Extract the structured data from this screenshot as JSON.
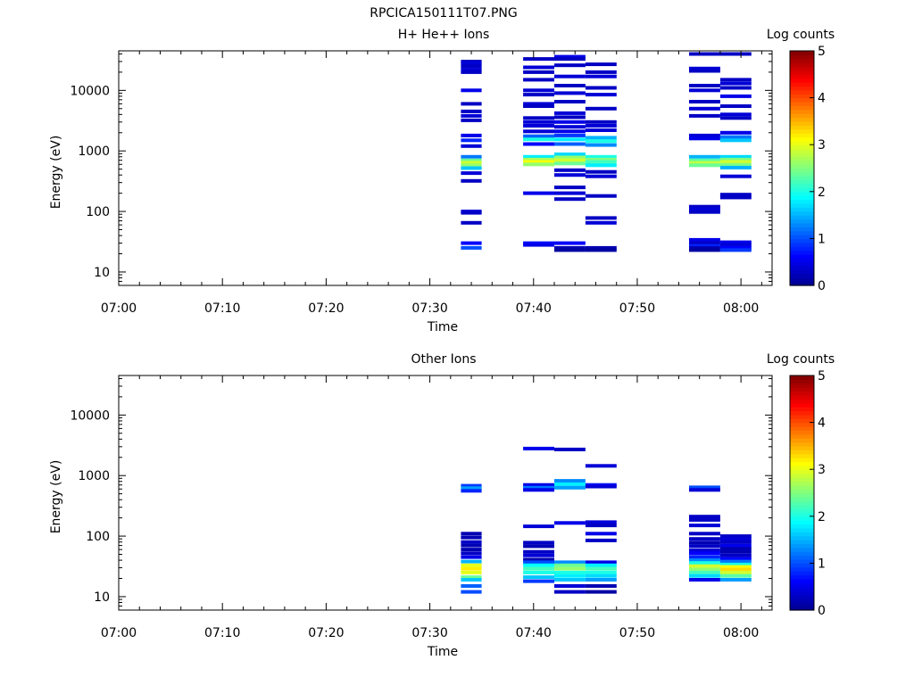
{
  "figure_title": "RPCICA150111T07.PNG",
  "colorbar": {
    "label": "Log counts",
    "ticks": [
      0,
      1,
      2,
      3,
      4,
      5
    ],
    "min": 0,
    "max": 5,
    "colormap": [
      "#00008f",
      "#0000ff",
      "#0080ff",
      "#00ffff",
      "#80ff80",
      "#ffff00",
      "#ff8000",
      "#ff0000",
      "#800000"
    ]
  },
  "chart_data": [
    {
      "type": "heatmap",
      "title": "H+ He++ Ions",
      "xlabel": "Time",
      "ylabel": "Energy (eV)",
      "xlim": [
        "07:00",
        "08:03"
      ],
      "ylim": [
        6,
        45000
      ],
      "y_scale": "log",
      "x_ticks": [
        "07:00",
        "07:10",
        "07:20",
        "07:30",
        "07:40",
        "07:50",
        "08:00"
      ],
      "y_ticks": [
        "10",
        "100",
        "1000",
        "10000"
      ],
      "columns": [
        {
          "t0": "07:33",
          "t1": "07:35",
          "cells": [
            [
              30000,
              0.3
            ],
            [
              28000,
              0.4
            ],
            [
              25000,
              0.3
            ],
            [
              22000,
              0.4
            ],
            [
              20000,
              0.3
            ],
            [
              10000,
              0.5
            ],
            [
              6000,
              0.3
            ],
            [
              4500,
              0.3
            ],
            [
              3800,
              0.4
            ],
            [
              3200,
              0.3
            ],
            [
              1800,
              0.5
            ],
            [
              1500,
              0.8
            ],
            [
              1200,
              0.4
            ],
            [
              800,
              1.2
            ],
            [
              700,
              2.4
            ],
            [
              640,
              2.9
            ],
            [
              580,
              2.6
            ],
            [
              520,
              1.6
            ],
            [
              430,
              0.4
            ],
            [
              320,
              0.3
            ],
            [
              100,
              0.4
            ],
            [
              95,
              0.3
            ],
            [
              65,
              0.3
            ],
            [
              30,
              0.6
            ],
            [
              25,
              1.0
            ]
          ]
        },
        {
          "t0": "07:39",
          "t1": "07:42",
          "cells": [
            [
              33000,
              0.3
            ],
            [
              24000,
              0.4
            ],
            [
              20000,
              0.3
            ],
            [
              15000,
              0.3
            ],
            [
              10000,
              0.4
            ],
            [
              8500,
              0.3
            ],
            [
              6000,
              0.4
            ],
            [
              5500,
              0.3
            ],
            [
              3500,
              0.3
            ],
            [
              3000,
              0.4
            ],
            [
              2600,
              0.4
            ],
            [
              2100,
              0.4
            ],
            [
              1750,
              1.1
            ],
            [
              1550,
              2.0
            ],
            [
              1300,
              0.6
            ],
            [
              800,
              1.8
            ],
            [
              720,
              2.7
            ],
            [
              660,
              3.1
            ],
            [
              600,
              2.6
            ],
            [
              200,
              0.5
            ],
            [
              30,
              0.7
            ],
            [
              28,
              0.5
            ]
          ]
        },
        {
          "t0": "07:42",
          "t1": "07:45",
          "cells": [
            [
              36000,
              0.5
            ],
            [
              33000,
              0.3
            ],
            [
              26000,
              0.3
            ],
            [
              17000,
              0.4
            ],
            [
              12000,
              0.3
            ],
            [
              9000,
              0.4
            ],
            [
              6500,
              0.3
            ],
            [
              4200,
              0.4
            ],
            [
              3600,
              0.3
            ],
            [
              3000,
              0.5
            ],
            [
              2500,
              0.4
            ],
            [
              2100,
              0.5
            ],
            [
              1800,
              0.9
            ],
            [
              1550,
              1.8
            ],
            [
              1300,
              1.1
            ],
            [
              880,
              1.7
            ],
            [
              780,
              2.6
            ],
            [
              700,
              2.9
            ],
            [
              620,
              2.4
            ],
            [
              480,
              0.3
            ],
            [
              400,
              0.4
            ],
            [
              250,
              0.3
            ],
            [
              200,
              0.4
            ],
            [
              160,
              0.3
            ],
            [
              30,
              0.6
            ],
            [
              25,
              0.2
            ],
            [
              23,
              0.1
            ]
          ]
        },
        {
          "t0": "07:45",
          "t1": "07:48",
          "cells": [
            [
              27000,
              0.3
            ],
            [
              20000,
              0.3
            ],
            [
              17000,
              0.4
            ],
            [
              11000,
              0.3
            ],
            [
              8500,
              0.4
            ],
            [
              5000,
              0.3
            ],
            [
              3000,
              0.3
            ],
            [
              2600,
              0.4
            ],
            [
              2200,
              0.4
            ],
            [
              1650,
              1.5
            ],
            [
              1450,
              2.0
            ],
            [
              1250,
              1.3
            ],
            [
              800,
              2.0
            ],
            [
              720,
              2.5
            ],
            [
              660,
              2.2
            ],
            [
              580,
              1.8
            ],
            [
              450,
              0.3
            ],
            [
              380,
              0.4
            ],
            [
              180,
              0.3
            ],
            [
              78,
              0.3
            ],
            [
              65,
              0.4
            ],
            [
              25,
              0.2
            ],
            [
              23,
              0.1
            ]
          ]
        },
        {
          "t0": "07:55",
          "t1": "07:58",
          "cells": [
            [
              40000,
              0.3
            ],
            [
              23000,
              0.4
            ],
            [
              21000,
              0.3
            ],
            [
              12000,
              0.3
            ],
            [
              10000,
              0.4
            ],
            [
              6500,
              0.3
            ],
            [
              5000,
              0.4
            ],
            [
              3800,
              0.3
            ],
            [
              1800,
              0.4
            ],
            [
              1600,
              0.5
            ],
            [
              800,
              1.5
            ],
            [
              700,
              2.3
            ],
            [
              640,
              2.8
            ],
            [
              580,
              2.4
            ],
            [
              120,
              0.3
            ],
            [
              110,
              0.4
            ],
            [
              98,
              0.3
            ],
            [
              34,
              0.5
            ],
            [
              30,
              0.3
            ],
            [
              27,
              0.8
            ],
            [
              25,
              0.2
            ],
            [
              23,
              0.1
            ]
          ]
        },
        {
          "t0": "07:58",
          "t1": "08:01",
          "cells": [
            [
              40000,
              0.3
            ],
            [
              15000,
              0.3
            ],
            [
              13000,
              0.4
            ],
            [
              11000,
              0.3
            ],
            [
              8000,
              0.5
            ],
            [
              5500,
              0.3
            ],
            [
              4000,
              0.4
            ],
            [
              3500,
              0.3
            ],
            [
              2000,
              0.5
            ],
            [
              1700,
              1.2
            ],
            [
              1500,
              1.6
            ],
            [
              800,
              1.7
            ],
            [
              720,
              2.5
            ],
            [
              660,
              2.9
            ],
            [
              590,
              2.5
            ],
            [
              530,
              1.5
            ],
            [
              380,
              0.4
            ],
            [
              190,
              0.3
            ],
            [
              170,
              0.3
            ],
            [
              31,
              0.5
            ],
            [
              28,
              0.4
            ],
            [
              25,
              0.6
            ],
            [
              23,
              0.9
            ]
          ]
        }
      ]
    },
    {
      "type": "heatmap",
      "title": "Other Ions",
      "xlabel": "Time",
      "ylabel": "Energy (eV)",
      "xlim": [
        "07:00",
        "08:03"
      ],
      "ylim": [
        6,
        45000
      ],
      "y_scale": "log",
      "x_ticks": [
        "07:00",
        "07:10",
        "07:20",
        "07:30",
        "07:40",
        "07:50",
        "08:00"
      ],
      "y_ticks": [
        "10",
        "100",
        "1000",
        "10000"
      ],
      "columns": [
        {
          "t0": "07:33",
          "t1": "07:35",
          "cells": [
            [
              680,
              0.9
            ],
            [
              620,
              1.4
            ],
            [
              560,
              0.8
            ],
            [
              110,
              0.2
            ],
            [
              95,
              0.2
            ],
            [
              80,
              0.3
            ],
            [
              70,
              0.2
            ],
            [
              60,
              0.2
            ],
            [
              52,
              0.3
            ],
            [
              45,
              0.5
            ],
            [
              38,
              1.5
            ],
            [
              33,
              3.0
            ],
            [
              29,
              3.2
            ],
            [
              25,
              3.0
            ],
            [
              21,
              2.4
            ],
            [
              19,
              1.6
            ],
            [
              15,
              1.1
            ],
            [
              12,
              1.0
            ]
          ]
        },
        {
          "t0": "07:39",
          "t1": "07:42",
          "cells": [
            [
              2800,
              0.5
            ],
            [
              700,
              0.5
            ],
            [
              630,
              1.2
            ],
            [
              580,
              0.5
            ],
            [
              145,
              0.4
            ],
            [
              78,
              0.3
            ],
            [
              68,
              0.2
            ],
            [
              55,
              0.3
            ],
            [
              48,
              0.4
            ],
            [
              41,
              0.2
            ],
            [
              37,
              1.0
            ],
            [
              33,
              1.9
            ],
            [
              29,
              2.2
            ],
            [
              25,
              2.0
            ],
            [
              21,
              1.6
            ],
            [
              18,
              0.9
            ]
          ]
        },
        {
          "t0": "07:42",
          "t1": "07:45",
          "cells": [
            [
              2700,
              0.3
            ],
            [
              820,
              1.3
            ],
            [
              720,
              1.8
            ],
            [
              630,
              1.4
            ],
            [
              165,
              0.5
            ],
            [
              37,
              1.3
            ],
            [
              33,
              2.4
            ],
            [
              29,
              2.6
            ],
            [
              25,
              2.0
            ],
            [
              22,
              1.8
            ],
            [
              19,
              1.6
            ],
            [
              15,
              0.4
            ],
            [
              12,
              0.3
            ]
          ]
        },
        {
          "t0": "07:45",
          "t1": "07:48",
          "cells": [
            [
              1450,
              0.4
            ],
            [
              700,
              0.7
            ],
            [
              660,
              0.4
            ],
            [
              170,
              0.4
            ],
            [
              150,
              0.3
            ],
            [
              110,
              0.5
            ],
            [
              85,
              0.3
            ],
            [
              37,
              0.5
            ],
            [
              33,
              1.8
            ],
            [
              29,
              2.2
            ],
            [
              25,
              2.0
            ],
            [
              22,
              1.7
            ],
            [
              19,
              1.4
            ],
            [
              15,
              0.2
            ],
            [
              12,
              0.1
            ]
          ]
        },
        {
          "t0": "07:55",
          "t1": "07:58",
          "cells": [
            [
              640,
              1.0
            ],
            [
              580,
              0.4
            ],
            [
              210,
              0.3
            ],
            [
              185,
              0.3
            ],
            [
              150,
              0.4
            ],
            [
              110,
              0.3
            ],
            [
              90,
              0.3
            ],
            [
              78,
              0.2
            ],
            [
              68,
              0.3
            ],
            [
              58,
              0.4
            ],
            [
              52,
              0.6
            ],
            [
              45,
              0.8
            ],
            [
              40,
              1.3
            ],
            [
              36,
              2.0
            ],
            [
              32,
              2.9
            ],
            [
              28,
              2.6
            ],
            [
              25,
              2.2
            ],
            [
              22,
              1.7
            ],
            [
              19,
              0.5
            ]
          ]
        },
        {
          "t0": "07:58",
          "t1": "08:01",
          "cells": [
            [
              100,
              0.3
            ],
            [
              90,
              0.4
            ],
            [
              80,
              0.3
            ],
            [
              70,
              0.5
            ],
            [
              62,
              0.2
            ],
            [
              55,
              0.2
            ],
            [
              48,
              0.3
            ],
            [
              42,
              0.6
            ],
            [
              38,
              1.2
            ],
            [
              34,
              2.0
            ],
            [
              31,
              3.1
            ],
            [
              28,
              3.3
            ],
            [
              25,
              2.9
            ],
            [
              22,
              2.3
            ],
            [
              19,
              1.4
            ]
          ]
        }
      ]
    }
  ]
}
